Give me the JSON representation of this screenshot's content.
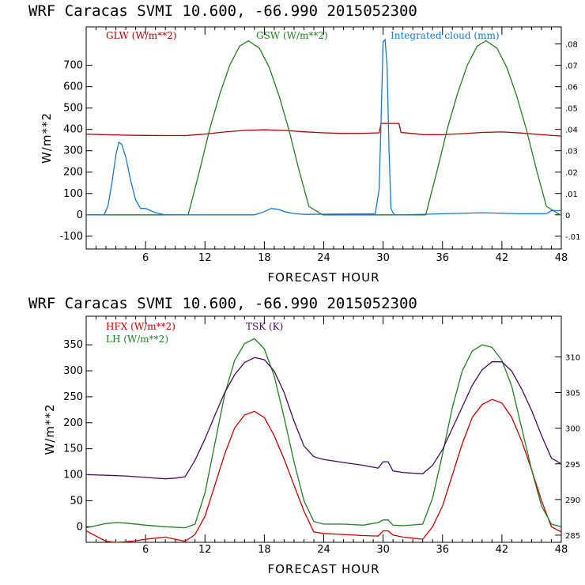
{
  "chart_data": [
    {
      "type": "line",
      "title": "WRF  Caracas SVMI  10.600, -66.990  2015052300",
      "xlabel": "FORECAST HOUR",
      "ylabel": "W/m**2",
      "xlim": [
        0,
        48
      ],
      "ylim": [
        -160,
        880
      ],
      "y2lim": [
        -0.016,
        0.088
      ],
      "x_ticks": [
        6,
        12,
        18,
        24,
        30,
        36,
        42,
        48
      ],
      "y_ticks": [
        -100,
        0,
        100,
        200,
        300,
        400,
        500,
        600,
        700
      ],
      "y2_ticks": [
        -0.01,
        0,
        0.01,
        0.02,
        0.03,
        0.04,
        0.05,
        0.06,
        0.07,
        0.08
      ],
      "y2_tick_labels": [
        "-.01",
        "0",
        ".01",
        ".02",
        ".03",
        ".04",
        ".05",
        ".06",
        ".07",
        ".08"
      ],
      "series": [
        {
          "name": "GLW (W/m**2)",
          "color": "#b00000",
          "axis": "left",
          "x": [
            0,
            2,
            4,
            6,
            8,
            10,
            12,
            14,
            16,
            18,
            20,
            22,
            24,
            26,
            28,
            29.6,
            29.8,
            31.6,
            31.8,
            34,
            36,
            38,
            40,
            42,
            44,
            46,
            48
          ],
          "y": [
            378,
            375,
            373,
            372,
            371,
            371,
            378,
            388,
            395,
            398,
            395,
            389,
            384,
            381,
            382,
            384,
            428,
            428,
            386,
            376,
            375,
            380,
            386,
            388,
            383,
            375,
            369
          ]
        },
        {
          "name": "GSW (W/m**2)",
          "color": "#208020",
          "axis": "left",
          "x": [
            0,
            10.3,
            11.5,
            12.5,
            13.5,
            14.5,
            15.5,
            16.4,
            17.5,
            18.5,
            19.5,
            20.5,
            21.5,
            22.5,
            23.9,
            34.3,
            35.5,
            36.5,
            37.5,
            38.5,
            39.5,
            40.4,
            41.5,
            42.5,
            43.5,
            44.5,
            45.5,
            46.5,
            47.9,
            48
          ],
          "y": [
            0,
            0,
            215,
            405,
            565,
            700,
            790,
            815,
            780,
            690,
            555,
            395,
            210,
            40,
            0,
            0,
            215,
            405,
            565,
            700,
            790,
            815,
            780,
            690,
            555,
            395,
            210,
            40,
            0,
            0
          ]
        },
        {
          "name": "Integrated cloud (mm)",
          "color": "#1478d2",
          "axis": "right",
          "x": [
            0,
            1.8,
            2.2,
            2.6,
            3.0,
            3.3,
            3.6,
            4.0,
            4.5,
            5.0,
            5.5,
            6.0,
            6.5,
            7.0,
            7.5,
            8,
            17,
            18,
            18.7,
            19.5,
            20,
            21,
            22,
            29.2,
            29.4,
            29.6,
            29.8,
            30.0,
            30.2,
            30.4,
            30.6,
            30.8,
            31.0,
            31.2,
            32,
            36,
            40,
            44,
            46.5,
            47,
            48
          ],
          "y": [
            0,
            0,
            0.004,
            0.015,
            0.028,
            0.034,
            0.033,
            0.027,
            0.016,
            0.007,
            0.003,
            0.003,
            0.002,
            0.001,
            0.0005,
            0,
            0,
            0.0015,
            0.003,
            0.0025,
            0.0015,
            0.0006,
            0.0002,
            0.0005,
            0.006,
            0.012,
            0.045,
            0.081,
            0.082,
            0.07,
            0.03,
            0.003,
            0.001,
            0,
            0,
            0.0005,
            0.001,
            0.0005,
            0.0005,
            0.002,
            0.002
          ]
        }
      ]
    },
    {
      "type": "line",
      "title": "WRF  Caracas SVMI  10.600, -66.990  2015052300",
      "xlabel": "FORECAST HOUR",
      "ylabel": "W/m**2",
      "xlim": [
        0,
        48
      ],
      "ylim": [
        -30,
        405
      ],
      "y2lim": [
        284,
        315.7
      ],
      "x_ticks": [
        6,
        12,
        18,
        24,
        30,
        36,
        42,
        48
      ],
      "y_ticks": [
        0,
        50,
        100,
        150,
        200,
        250,
        300,
        350
      ],
      "y2_ticks": [
        285,
        290,
        295,
        300,
        305,
        310
      ],
      "y2_tick_labels": [
        "285",
        "290",
        "295",
        "300",
        "305",
        "310"
      ],
      "series": [
        {
          "name": "HFX (W/m**2)",
          "color": "#cc0000",
          "axis": "left",
          "x": [
            0,
            1,
            2,
            3,
            4,
            5,
            6,
            7,
            8,
            9,
            10,
            11,
            12,
            13,
            14,
            15,
            16,
            17,
            18,
            19,
            20,
            21,
            22,
            23,
            24,
            26,
            28,
            29.5,
            30,
            30.5,
            31,
            32,
            33,
            34,
            35,
            36,
            37,
            38,
            39,
            40,
            41,
            42,
            43,
            44,
            45,
            46,
            47,
            48
          ],
          "y": [
            -8,
            -18,
            -28,
            -30,
            -29,
            -27,
            -24,
            -22,
            -20,
            -24,
            -28,
            -15,
            20,
            80,
            140,
            190,
            215,
            222,
            210,
            175,
            130,
            80,
            30,
            -10,
            -13,
            -15,
            -17,
            -18,
            -8,
            -8,
            -16,
            -20,
            -22,
            -24,
            0,
            40,
            100,
            160,
            210,
            235,
            245,
            238,
            210,
            165,
            110,
            50,
            0,
            -10
          ]
        },
        {
          "name": "LH (W/m**2)",
          "color": "#208020",
          "axis": "left",
          "x": [
            0,
            1,
            2,
            3,
            4,
            6,
            8,
            10,
            11,
            12,
            13,
            14,
            15,
            16,
            17,
            18,
            19,
            20,
            21,
            22,
            23,
            24,
            26,
            28,
            29.5,
            30,
            30.5,
            31,
            32,
            34,
            35,
            36,
            37,
            38,
            39,
            40,
            41,
            42,
            43,
            44,
            45,
            46,
            47,
            48
          ],
          "y": [
            -2,
            2,
            6,
            8,
            7,
            3,
            0,
            -2,
            5,
            65,
            160,
            255,
            320,
            352,
            362,
            342,
            290,
            210,
            125,
            50,
            10,
            5,
            5,
            3,
            8,
            13,
            13,
            3,
            2,
            5,
            55,
            140,
            230,
            300,
            338,
            350,
            345,
            320,
            270,
            190,
            110,
            40,
            5,
            0
          ]
        },
        {
          "name": "TSK (K)",
          "color": "#4a0a60",
          "axis": "right",
          "x": [
            0,
            2,
            4,
            6,
            8,
            9,
            10,
            11,
            12,
            13,
            14,
            15,
            16,
            17,
            18,
            19,
            20,
            21,
            22,
            23,
            24,
            26,
            28,
            29.5,
            30,
            30.5,
            31,
            32,
            34,
            35,
            36,
            37,
            38,
            39,
            40,
            41,
            42,
            43,
            44,
            45,
            46,
            47,
            48
          ],
          "y": [
            293.5,
            293.4,
            293.3,
            293.1,
            292.9,
            293.0,
            293.2,
            295.5,
            298.5,
            301.8,
            305.0,
            307.5,
            309.2,
            309.9,
            309.6,
            308.0,
            305.0,
            301.0,
            297.5,
            296.0,
            295.6,
            295.2,
            294.8,
            294.4,
            295.3,
            295.3,
            294.0,
            293.8,
            293.6,
            294.8,
            297.0,
            300.0,
            303.0,
            306.0,
            308.2,
            309.3,
            309.3,
            308.0,
            305.5,
            302.5,
            299.0,
            295.8,
            295.0
          ]
        }
      ]
    }
  ]
}
